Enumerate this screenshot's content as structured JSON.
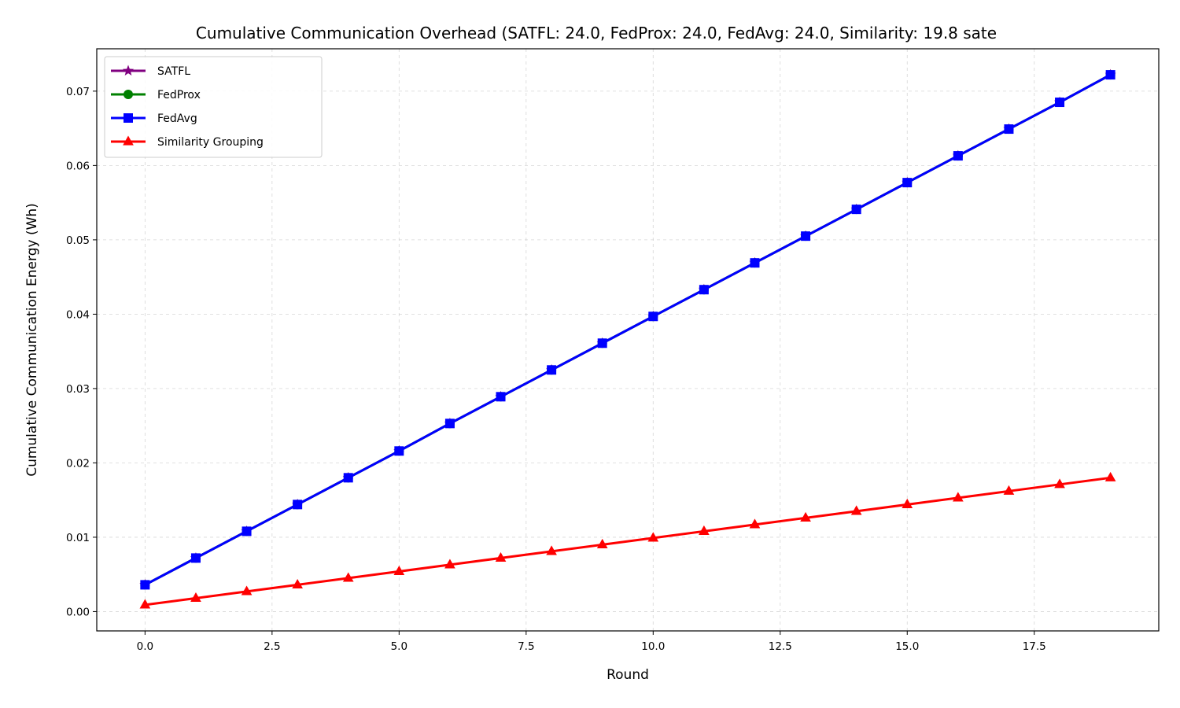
{
  "chart_data": {
    "type": "line",
    "title": "Cumulative Communication Overhead (SATFL: 24.0, FedProx: 24.0, FedAvg: 24.0, Similarity: 19.8 sate",
    "xlabel": "Round",
    "ylabel": "Cumulative Communication Energy (Wh)",
    "xlim": [
      -0.95,
      19.95
    ],
    "ylim": [
      -0.0026,
      0.0757
    ],
    "xticks": [
      0.0,
      2.5,
      5.0,
      7.5,
      10.0,
      12.5,
      15.0,
      17.5
    ],
    "xtick_labels": [
      "0.0",
      "2.5",
      "5.0",
      "7.5",
      "10.0",
      "12.5",
      "15.0",
      "17.5"
    ],
    "yticks": [
      0.0,
      0.01,
      0.02,
      0.03,
      0.04,
      0.05,
      0.06,
      0.07
    ],
    "ytick_labels": [
      "0.00",
      "0.01",
      "0.02",
      "0.03",
      "0.04",
      "0.05",
      "0.06",
      "0.07"
    ],
    "grid": true,
    "legend_position": "top-left",
    "x": [
      0,
      1,
      2,
      3,
      4,
      5,
      6,
      7,
      8,
      9,
      10,
      11,
      12,
      13,
      14,
      15,
      16,
      17,
      18,
      19
    ],
    "series": [
      {
        "name": "SATFL",
        "color": "#800080",
        "marker": "star",
        "values": [
          0.0036,
          0.0072,
          0.0108,
          0.0144,
          0.018,
          0.0216,
          0.0253,
          0.0289,
          0.0325,
          0.0361,
          0.0397,
          0.0433,
          0.0469,
          0.0505,
          0.0541,
          0.0577,
          0.0613,
          0.0649,
          0.0685,
          0.0722
        ]
      },
      {
        "name": "FedProx",
        "color": "#008000",
        "marker": "circle",
        "values": [
          0.0036,
          0.0072,
          0.0108,
          0.0144,
          0.018,
          0.0216,
          0.0253,
          0.0289,
          0.0325,
          0.0361,
          0.0397,
          0.0433,
          0.0469,
          0.0505,
          0.0541,
          0.0577,
          0.0613,
          0.0649,
          0.0685,
          0.0722
        ]
      },
      {
        "name": "FedAvg",
        "color": "#0000ff",
        "marker": "square",
        "values": [
          0.0036,
          0.0072,
          0.0108,
          0.0144,
          0.018,
          0.0216,
          0.0253,
          0.0289,
          0.0325,
          0.0361,
          0.0397,
          0.0433,
          0.0469,
          0.0505,
          0.0541,
          0.0577,
          0.0613,
          0.0649,
          0.0685,
          0.0722
        ]
      },
      {
        "name": "Similarity Grouping",
        "color": "#ff0000",
        "marker": "triangle",
        "values": [
          0.0009,
          0.0018,
          0.0027,
          0.0036,
          0.0045,
          0.0054,
          0.0063,
          0.0072,
          0.0081,
          0.009,
          0.0099,
          0.0108,
          0.0117,
          0.0126,
          0.0135,
          0.0144,
          0.0153,
          0.0162,
          0.0171,
          0.018
        ]
      }
    ]
  }
}
